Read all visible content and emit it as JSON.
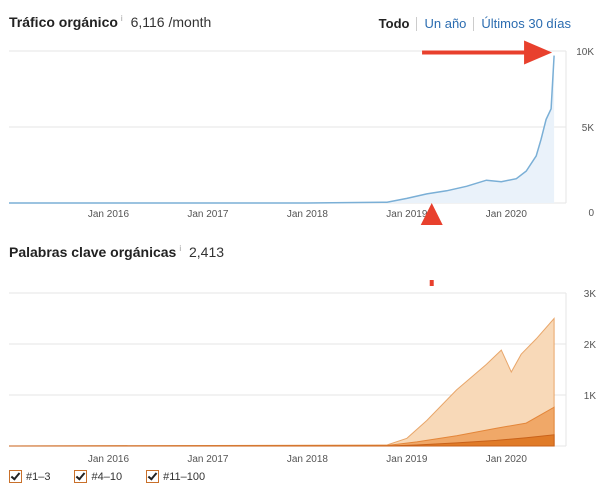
{
  "traffic_header": {
    "title": "Tráfico orgánico",
    "info": "i",
    "value": "6,116 /month"
  },
  "range": {
    "all": "Todo",
    "year": "Un año",
    "last30": "Últimos 30 días"
  },
  "keywords_header": {
    "title": "Palabras clave orgánicas",
    "info": "i",
    "value": "2,413"
  },
  "legend": [
    "#1–3",
    "#4–10",
    "#11–100"
  ],
  "colors": {
    "traffic": "#7aafd6",
    "traffic_fill": "#eaf2fa",
    "kw_top3": "#e07b28",
    "kw_4_10": "#f0a868",
    "kw_11_100": "#f8d9b8",
    "arrow": "#e8402d"
  },
  "chart_data": [
    {
      "type": "area",
      "title": "Tráfico orgánico",
      "x_ticks": [
        "Jan 2016",
        "Jan 2017",
        "Jan 2018",
        "Jan 2019",
        "Jan 2020"
      ],
      "y_ticks": [
        "10K",
        "5K",
        "0"
      ],
      "ylim": [
        0,
        10000
      ],
      "series": [
        {
          "x": [
            2015.0,
            2016.0,
            2017.0,
            2018.0,
            2018.8,
            2019.0,
            2019.2,
            2019.4,
            2019.6,
            2019.8,
            2019.95,
            2020.1,
            2020.2,
            2020.3,
            2020.35,
            2020.4,
            2020.45,
            2020.48
          ],
          "values": [
            0,
            0,
            0,
            0,
            50,
            300,
            600,
            800,
            1100,
            1500,
            1400,
            1600,
            2100,
            3100,
            4200,
            5500,
            6200,
            9700
          ]
        }
      ]
    },
    {
      "type": "area",
      "title": "Palabras clave orgánicas",
      "x_ticks": [
        "Jan 2016",
        "Jan 2017",
        "Jan 2018",
        "Jan 2019",
        "Jan 2020"
      ],
      "y_ticks": [
        "3K",
        "2K",
        "1K"
      ],
      "ylim": [
        0,
        3000
      ],
      "series": [
        {
          "name": "#1–3",
          "x": [
            2015.0,
            2018.8,
            2019.1,
            2019.5,
            2019.9,
            2020.2,
            2020.48
          ],
          "values": [
            0,
            0,
            20,
            60,
            110,
            160,
            220
          ]
        },
        {
          "name": "#4–10",
          "x": [
            2015.0,
            2018.8,
            2019.1,
            2019.5,
            2019.9,
            2020.2,
            2020.48
          ],
          "values": [
            0,
            10,
            80,
            200,
            350,
            450,
            760
          ]
        },
        {
          "name": "#11–100",
          "x": [
            2015.0,
            2018.8,
            2019.0,
            2019.2,
            2019.5,
            2019.8,
            2019.95,
            2020.05,
            2020.15,
            2020.3,
            2020.48
          ],
          "values": [
            0,
            20,
            150,
            500,
            1100,
            1600,
            1880,
            1450,
            1800,
            2100,
            2500
          ]
        }
      ]
    }
  ]
}
